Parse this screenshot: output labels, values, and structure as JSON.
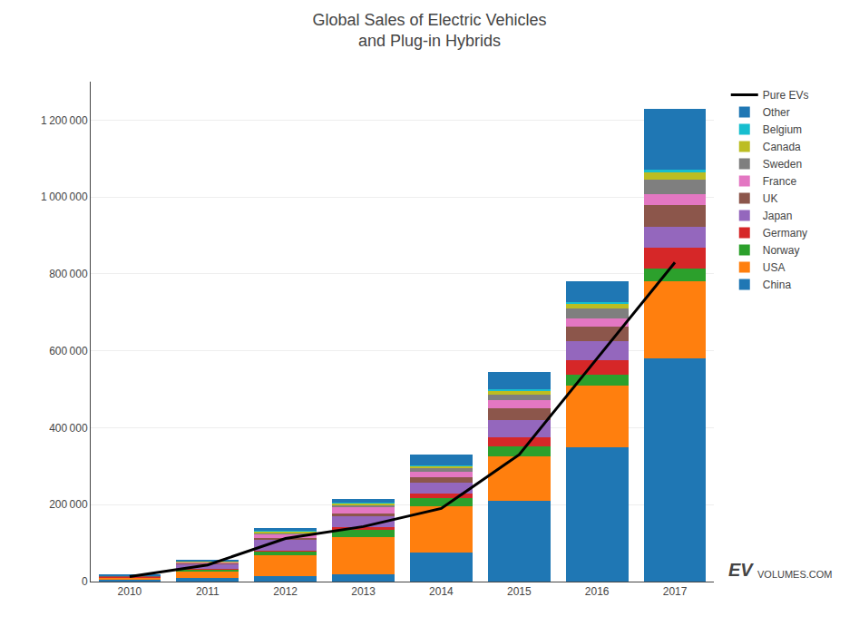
{
  "chart_data": {
    "type": "bar",
    "title": "Global Sales of Electric Vehicles\nand Plug-in Hybrids",
    "categories": [
      "2010",
      "2011",
      "2012",
      "2013",
      "2014",
      "2015",
      "2016",
      "2017"
    ],
    "series": [
      {
        "name": "China",
        "values": [
          5000,
          10000,
          15000,
          18000,
          75000,
          210000,
          350000,
          580000
        ]
      },
      {
        "name": "USA",
        "values": [
          6000,
          18000,
          53000,
          97000,
          120000,
          115000,
          160000,
          200000
        ]
      },
      {
        "name": "Norway",
        "values": [
          700,
          4000,
          10000,
          19000,
          22000,
          26000,
          29000,
          33000
        ]
      },
      {
        "name": "Germany",
        "values": [
          300,
          2000,
          3000,
          7000,
          13000,
          24000,
          36000,
          55000
        ]
      },
      {
        "name": "Japan",
        "values": [
          2000,
          12000,
          28000,
          30000,
          27000,
          46000,
          50000,
          55000
        ]
      },
      {
        "name": "UK",
        "values": [
          500,
          1500,
          4000,
          7000,
          15000,
          29000,
          37000,
          55000
        ]
      },
      {
        "name": "France",
        "values": [
          500,
          2500,
          12000,
          15000,
          14000,
          22000,
          22000,
          30000
        ]
      },
      {
        "name": "Sweden",
        "values": [
          200,
          1000,
          2000,
          5000,
          8000,
          15000,
          25000,
          38000
        ]
      },
      {
        "name": "Canada",
        "values": [
          300,
          1000,
          3000,
          6000,
          6000,
          9000,
          12000,
          17000
        ]
      },
      {
        "name": "Belgium",
        "values": [
          200,
          500,
          2000,
          2000,
          3000,
          5000,
          6000,
          9000
        ]
      },
      {
        "name": "Other",
        "values": [
          1300,
          2500,
          8000,
          9000,
          27000,
          44000,
          53000,
          158000
        ]
      },
      {
        "name": "Pure EVs",
        "type": "line",
        "color": "#000000",
        "values": [
          13000,
          43000,
          112000,
          143000,
          190000,
          330000,
          580000,
          830000
        ]
      }
    ],
    "stacked": true,
    "ylim": [
      0,
      1300000
    ],
    "yticks": [
      0,
      {
        "value": 200000,
        "label": "200 000"
      },
      {
        "value": 400000,
        "label": "400 000"
      },
      {
        "value": 600000,
        "label": "600 000"
      },
      {
        "value": 800000,
        "label": "800 000"
      },
      {
        "value": 1000000,
        "label": "1 000 000"
      },
      {
        "value": 1200000,
        "label": "1 200 000"
      }
    ],
    "grid": "y",
    "legend": "right",
    "annotations": [
      {
        "text": "EV"
      },
      {
        "text": "VOLUMES.COM"
      }
    ]
  }
}
